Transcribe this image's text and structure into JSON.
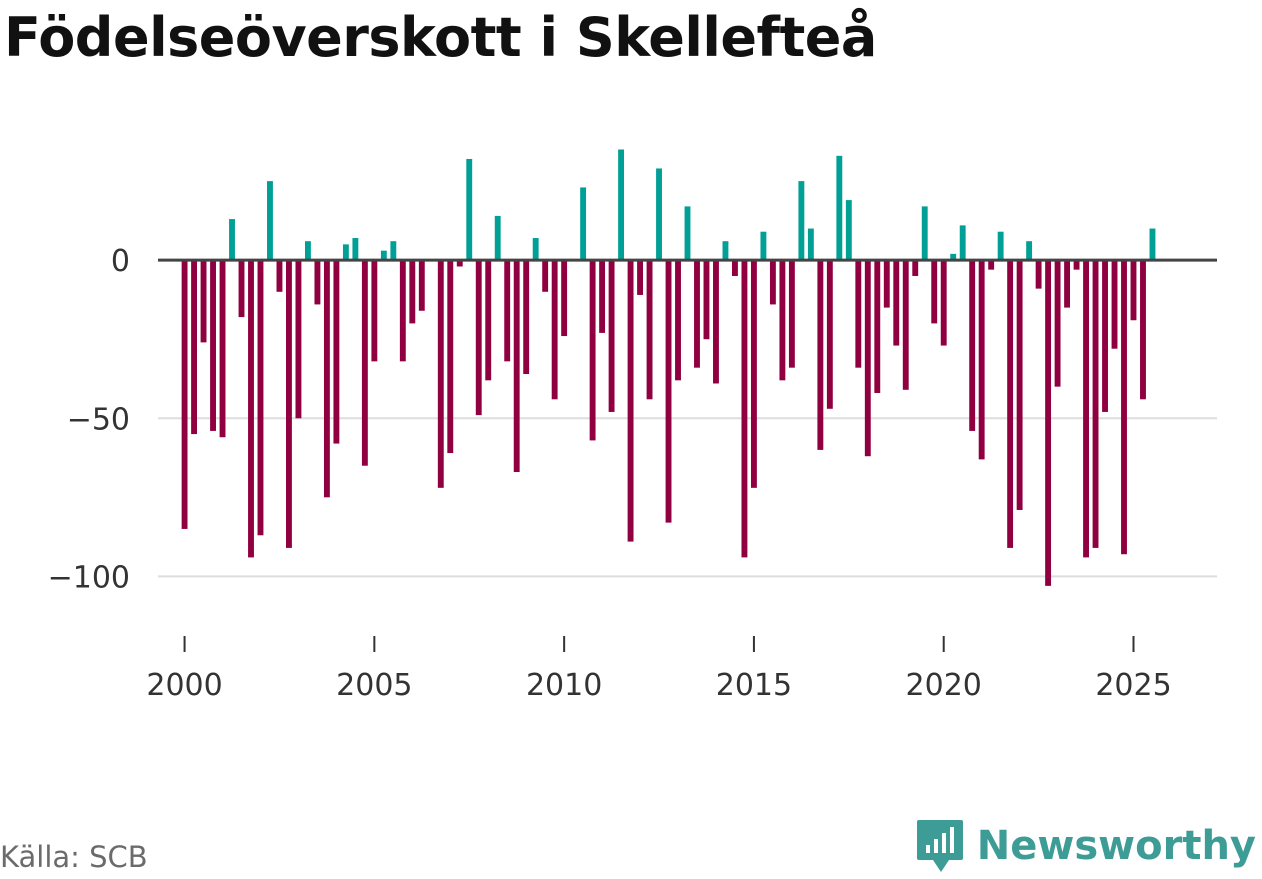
{
  "title": "Födelseöverskott i Skellefteå",
  "source": "Källa: SCB",
  "brand": {
    "name": "Newsworthy",
    "icon": "newsworthy-logo-icon"
  },
  "colors": {
    "positive": "#00a097",
    "negative": "#900040",
    "brand": "#3e9c96",
    "zero_line": "#444444",
    "grid": "#dddddd"
  },
  "chart_data": {
    "type": "bar",
    "title": "Födelseöverskott i Skellefteå",
    "xlabel": "",
    "ylabel": "",
    "frequency": "quarterly",
    "x_start": 2000.0,
    "x_step": 0.25,
    "ylim": [
      -110,
      38
    ],
    "xlim": [
      1999.3,
      2027.2
    ],
    "y_ticks": [
      0,
      -50,
      -100
    ],
    "y_tick_labels": [
      "0",
      "−50",
      "−100"
    ],
    "x_ticks": [
      2000,
      2005,
      2010,
      2015,
      2020,
      2025
    ],
    "x_tick_labels": [
      "2000",
      "2005",
      "2010",
      "2015",
      "2020",
      "2025"
    ],
    "values": [
      -85,
      -55,
      -26,
      -54,
      -56,
      13,
      -18,
      -94,
      -87,
      25,
      -10,
      -91,
      -50,
      6,
      -14,
      -75,
      -58,
      5,
      7,
      -65,
      -32,
      3,
      6,
      -32,
      -20,
      -16,
      0,
      -72,
      -61,
      -2,
      32,
      -49,
      -38,
      14,
      -32,
      -67,
      -36,
      7,
      -10,
      -44,
      -24,
      0,
      23,
      -57,
      -23,
      -48,
      35,
      -89,
      -11,
      -44,
      29,
      -83,
      -38,
      17,
      -34,
      -25,
      -39,
      6,
      -5,
      -94,
      -72,
      9,
      -14,
      -38,
      -34,
      25,
      10,
      -60,
      -47,
      33,
      19,
      -34,
      -62,
      -42,
      -15,
      -27,
      -41,
      -5,
      17,
      -20,
      -27,
      2,
      11,
      -54,
      -63,
      -3,
      9,
      -91,
      -79,
      6,
      -9,
      -103,
      -40,
      -15,
      -3,
      -94,
      -91,
      -48,
      -28,
      -93,
      -19,
      -44,
      10
    ]
  }
}
